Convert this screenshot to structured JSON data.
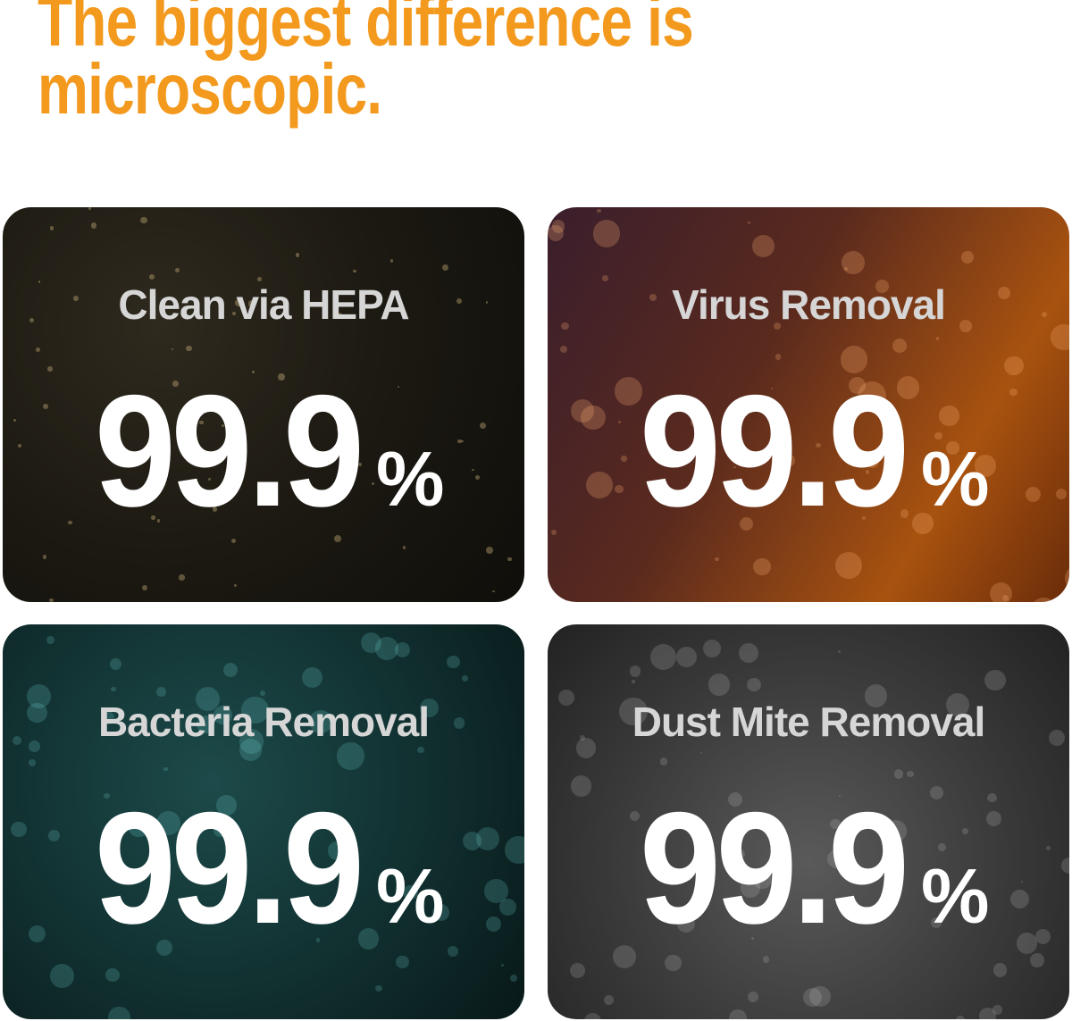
{
  "headline": {
    "line1": "The biggest difference is",
    "line2": "microscopic.",
    "color": "#f39a1e"
  },
  "cards": [
    {
      "label": "Clean via HEPA",
      "value": "99.9",
      "unit": "%",
      "image": "dust-particles"
    },
    {
      "label": "Virus Removal",
      "value": "99.9",
      "unit": "%",
      "image": "virus"
    },
    {
      "label": "Bacteria Removal",
      "value": "99.9",
      "unit": "%",
      "image": "bacteria"
    },
    {
      "label": "Dust Mite Removal",
      "value": "99.9",
      "unit": "%",
      "image": "dust-mites"
    }
  ]
}
